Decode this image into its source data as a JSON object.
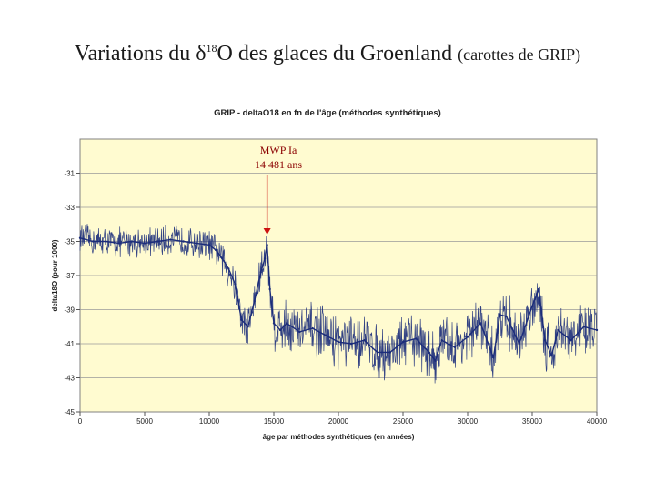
{
  "slide": {
    "title_pre": "Variations du δ",
    "title_sup": "18",
    "title_post": "O des glaces du Groenland",
    "title_small": "(carottes de GRIP)"
  },
  "colors": {
    "plot_background": "#fffbd0",
    "series": "#1b2c7a",
    "arrow": "#cc1010",
    "annotation_text": "#8b0000",
    "grid": "#9a9a9a"
  },
  "chart_data": {
    "type": "line",
    "title": "GRIP - deltaO18 en fn de l'âge (méthodes synthétiques)",
    "xlabel": "âge par méthodes synthétiques (en années)",
    "ylabel": "delta18O (pour 1000)",
    "xlim": [
      0,
      40000
    ],
    "ylim": [
      -45,
      -29
    ],
    "xticks": [
      0,
      5000,
      10000,
      15000,
      20000,
      25000,
      30000,
      35000,
      40000
    ],
    "yticks": [
      -31,
      -33,
      -35,
      -37,
      -39,
      -41,
      -43,
      -45
    ],
    "grid": true,
    "legend": "none",
    "annotation": {
      "line1": "MWP Ia",
      "line2": "14 481 ans",
      "x": 14481,
      "y": -34.6
    },
    "series": [
      {
        "name": "deltaO18",
        "x": [
          0,
          1000,
          2000,
          3000,
          4000,
          5000,
          6000,
          7000,
          8000,
          9000,
          10000,
          10500,
          11000,
          11500,
          12000,
          12500,
          13000,
          13500,
          14000,
          14300,
          14481,
          14700,
          15000,
          15500,
          16000,
          17000,
          18000,
          19000,
          20000,
          21000,
          22000,
          23000,
          24000,
          25000,
          26000,
          27000,
          27500,
          28000,
          29000,
          30000,
          31000,
          32000,
          32500,
          33000,
          34000,
          35000,
          35500,
          36000,
          36500,
          37000,
          38000,
          39000,
          40000
        ],
        "y": [
          -34.8,
          -35.0,
          -35.0,
          -35.1,
          -35.0,
          -35.1,
          -35.0,
          -34.9,
          -35.0,
          -35.1,
          -35.2,
          -35.5,
          -36.0,
          -36.6,
          -37.5,
          -39.6,
          -40.0,
          -38.5,
          -36.8,
          -36.0,
          -35.2,
          -37.8,
          -39.8,
          -40.2,
          -39.8,
          -40.3,
          -40.1,
          -40.5,
          -40.9,
          -41.0,
          -40.8,
          -41.5,
          -41.5,
          -40.9,
          -40.7,
          -41.5,
          -42.0,
          -40.8,
          -41.2,
          -40.6,
          -39.8,
          -41.8,
          -39.3,
          -39.4,
          -41.0,
          -38.8,
          -37.8,
          -40.8,
          -41.7,
          -40.2,
          -40.8,
          -40.0,
          -40.2
        ]
      }
    ]
  }
}
